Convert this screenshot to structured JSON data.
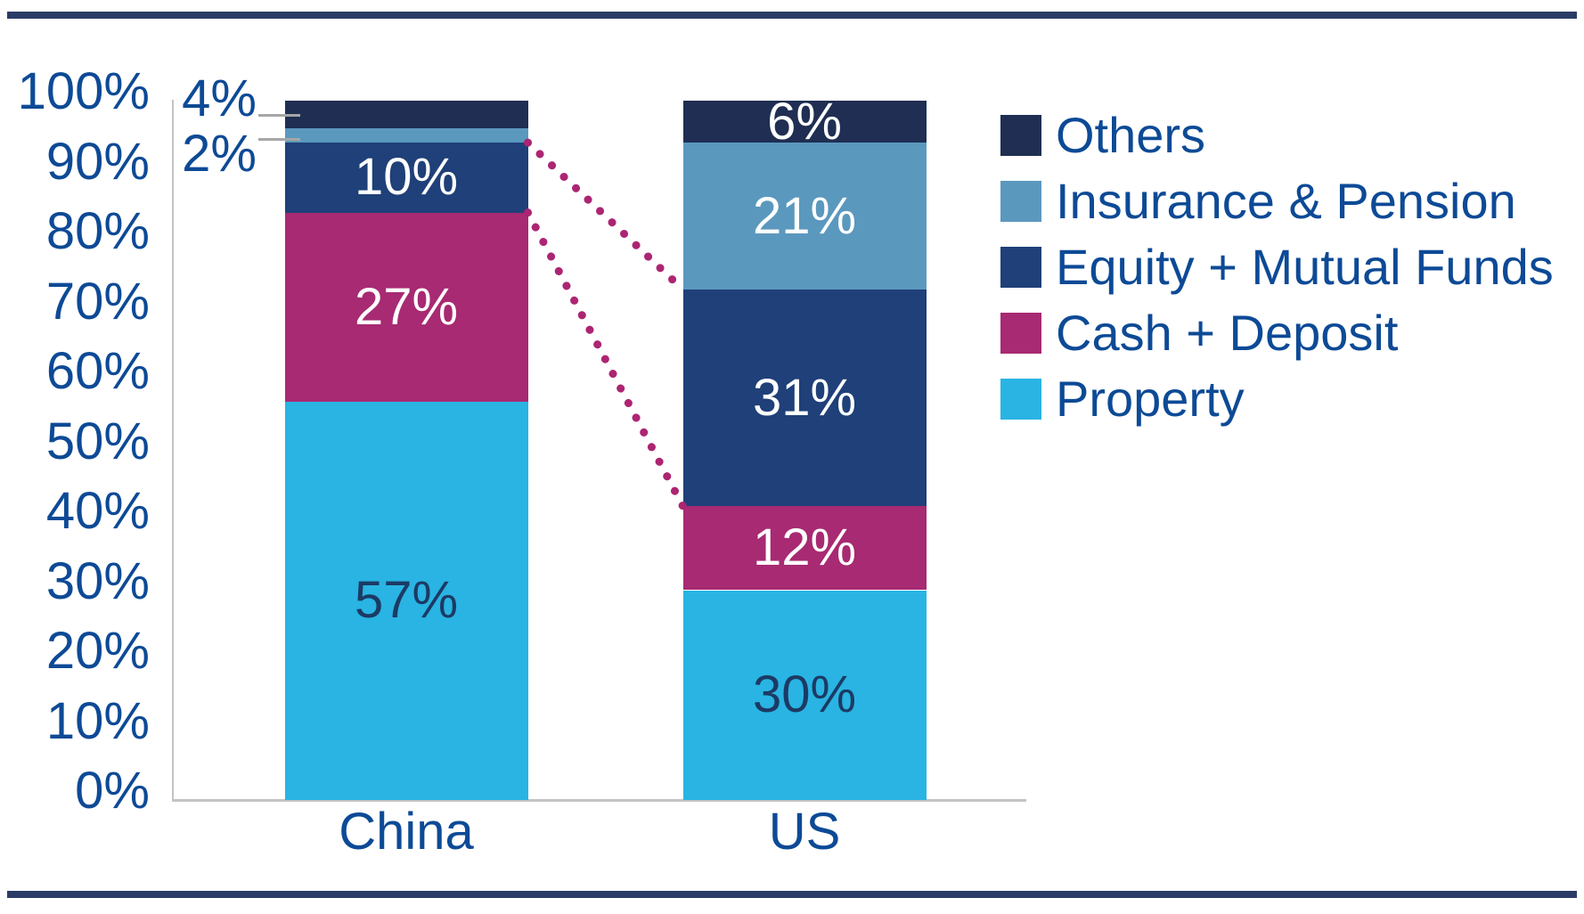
{
  "page": {
    "divider_color": "#2A3C66",
    "background": "#FFFFFF"
  },
  "chart_data": {
    "type": "bar",
    "subtype": "stacked-column",
    "title": "",
    "categories": [
      "China",
      "US"
    ],
    "series": [
      {
        "name": "Others",
        "values": [
          4,
          6
        ],
        "color": "#1F2E52",
        "label_color": "#FFFFFF"
      },
      {
        "name": "Insurance & Pension",
        "values": [
          2,
          21
        ],
        "color": "#5B98BE",
        "label_color": "#FFFFFF"
      },
      {
        "name": "Equity + Mutual Funds",
        "values": [
          10,
          31
        ],
        "color": "#1F4078",
        "label_color": "#FFFFFF"
      },
      {
        "name": "Cash + Deposit",
        "values": [
          27,
          12
        ],
        "color": "#A72A72",
        "label_color": "#FFFFFF"
      },
      {
        "name": "Property",
        "values": [
          57,
          30
        ],
        "color": "#29B4E3",
        "label_color": "#1C3A64"
      }
    ],
    "stack_order": "top-to-bottom",
    "value_suffix": "%",
    "y_axis": {
      "min": 0,
      "max": 100,
      "step": 10,
      "tick_suffix": "%",
      "tick_color": "#0D4A96"
    },
    "x_tick_labels": [
      "China",
      "US"
    ],
    "grid": false,
    "legend": {
      "position": "right",
      "entries": [
        "Others",
        "Insurance & Pension",
        "Equity + Mutual Funds",
        "Cash + Deposit",
        "Property"
      ],
      "text_color": "#0D4A96"
    },
    "callouts": [
      {
        "category": "China",
        "series": "Others",
        "text": "4%"
      },
      {
        "category": "China",
        "series": "Insurance & Pension",
        "text": "2%"
      }
    ],
    "callout_leader_color": "#A6A6A6",
    "connector": {
      "series": "Equity + Mutual Funds",
      "from_category": "China",
      "to_category": "US",
      "edges": [
        "top",
        "bottom"
      ],
      "style": "dotted",
      "color": "#AC2572"
    },
    "axis_line_color": "#C3C3C3",
    "category_label_color": "#0D4A96"
  }
}
